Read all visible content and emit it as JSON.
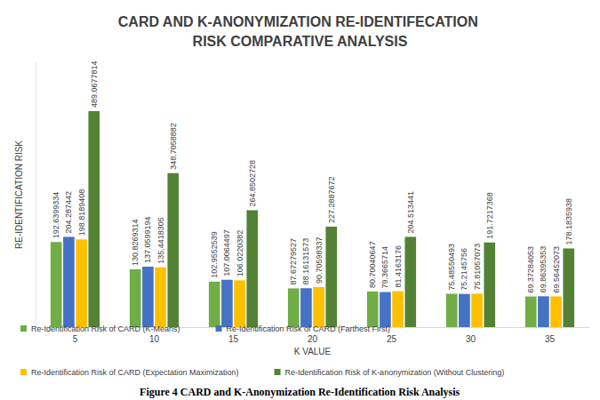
{
  "chart_data": {
    "type": "bar",
    "title": "CARD AND K-ANONYMIZATION RE-IDENTIFECATION RISK COMPARATIVE ANALYSIS",
    "caption": "Figure 4 CARD and K-Anonymization Re-Identification Risk Analysis",
    "x_label": "K VALUE",
    "y_label": "RE-IDENTIFICATION RISK",
    "categories": [
      "5",
      "10",
      "15",
      "20",
      "25",
      "30",
      "35"
    ],
    "series": [
      {
        "name": "Re-Identification Risk of CARD (K-Means)",
        "color": "#70ad47",
        "values": [
          192.6399334,
          130.8269314,
          102.9552539,
          87.67279527,
          80.70040647,
          75.48550493,
          69.37284053
        ]
      },
      {
        "name": "Re-Identification Risk of CARD (Farthest First)",
        "color": "#4472c4",
        "values": [
          204.287442,
          137.0599194,
          107.0064497,
          88.16131573,
          79.3665714,
          75.2145756,
          69.86395353
        ]
      },
      {
        "name": "Re-Identification Risk of CARD (Expectation Maximization)",
        "color": "#ffc000",
        "values": [
          198.8189408,
          135.4418305,
          106.0220382,
          90.70598337,
          81.4163176,
          75.81057073,
          69.56452073
        ]
      },
      {
        "name": "Re-Identification Risk of K-anonymization (Without Clustering)",
        "color": "#548235",
        "values": [
          489.0677814,
          348.7058882,
          264.8502728,
          227.2887672,
          204.513441,
          191.7217368,
          178.1835938
        ]
      }
    ],
    "ylim": [
      0,
      600
    ],
    "grid": false,
    "tick_labels": "x",
    "data_labels": true,
    "legend": "bottom"
  }
}
